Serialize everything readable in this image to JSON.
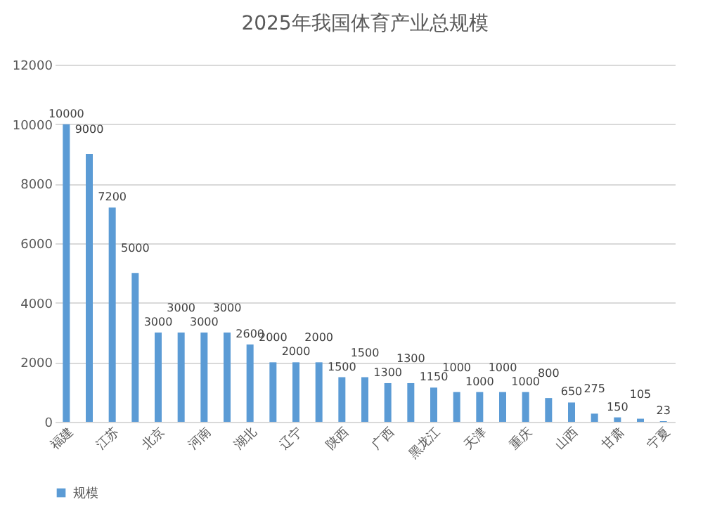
{
  "chart_data": {
    "type": "bar",
    "title": "2025年我国体育产业总规模",
    "categories": [
      "福建",
      null,
      "江苏",
      null,
      "北京",
      null,
      "河南",
      null,
      "湖北",
      null,
      "辽宁",
      null,
      "陕西",
      null,
      "广西",
      null,
      "黑龙江",
      null,
      "天津",
      null,
      "重庆",
      null,
      "山西",
      null,
      "甘肃",
      null,
      "宁夏"
    ],
    "series": [
      {
        "name": "规模",
        "color": "#5b9bd5",
        "values": [
          10000,
          9000,
          7200,
          5000,
          3000,
          3000,
          3000,
          3000,
          2600,
          2000,
          2000,
          2000,
          1500,
          1500,
          1300,
          1300,
          1150,
          1000,
          1000,
          1000,
          1000,
          800,
          650,
          275,
          150,
          105,
          23
        ]
      }
    ],
    "ylim": [
      0,
      12000
    ],
    "yticks": [
      0,
      2000,
      4000,
      6000,
      8000,
      10000,
      12000
    ],
    "grid": "y",
    "legend": "bottom",
    "data_labels": true
  }
}
